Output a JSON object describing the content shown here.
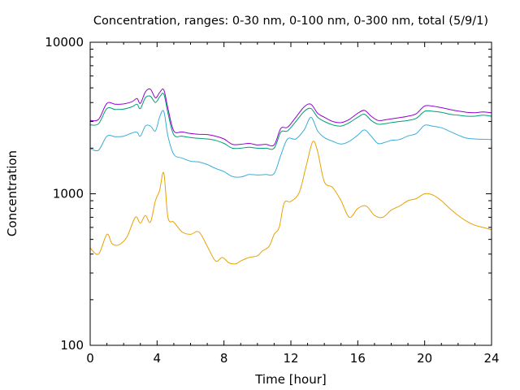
{
  "chart_data": {
    "type": "line",
    "title": "Concentration, ranges: 0-30 nm, 0-100 nm, 0-300 nm, total (5/9/1)",
    "xlabel": "Time [hour]",
    "ylabel": "Concentration",
    "xlim": [
      0,
      24
    ],
    "ylim": [
      100,
      10000
    ],
    "yscale": "log",
    "grid": false,
    "legend": "none",
    "x_ticks": [
      "0",
      "4",
      "8",
      "12",
      "16",
      "20",
      "24"
    ],
    "y_ticks": [
      "100",
      "1000",
      "10000"
    ],
    "series": [
      {
        "color": "#e8a200",
        "x": [
          0,
          0.5,
          1.0,
          1.3,
          1.7,
          2.2,
          2.7,
          3.0,
          3.3,
          3.6,
          3.9,
          4.15,
          4.4,
          4.65,
          5.0,
          5.5,
          6.0,
          6.5,
          7.0,
          7.5,
          7.9,
          8.3,
          8.7,
          9.0,
          9.5,
          10.0,
          10.3,
          10.7,
          11.0,
          11.3,
          11.6,
          12.0,
          12.5,
          12.9,
          13.3,
          13.6,
          14.0,
          14.5,
          15.0,
          15.5,
          16.0,
          16.5,
          17.0,
          17.5,
          18.0,
          18.5,
          19.0,
          19.5,
          20.0,
          20.5,
          21.0,
          21.5,
          22.0,
          22.5,
          23.0,
          23.5,
          24.0
        ],
        "y": [
          440,
          400,
          540,
          470,
          460,
          520,
          700,
          640,
          720,
          650,
          900,
          1050,
          1370,
          700,
          650,
          560,
          540,
          560,
          450,
          360,
          380,
          350,
          345,
          360,
          380,
          390,
          420,
          450,
          540,
          600,
          870,
          890,
          1020,
          1500,
          2200,
          1900,
          1200,
          1100,
          900,
          700,
          800,
          830,
          720,
          700,
          780,
          830,
          900,
          930,
          1000,
          980,
          900,
          800,
          720,
          660,
          620,
          600,
          580
        ]
      },
      {
        "color": "#3aaed8",
        "x": [
          0,
          0.5,
          1.0,
          1.5,
          2.0,
          2.5,
          2.8,
          3.0,
          3.3,
          3.6,
          3.9,
          4.15,
          4.4,
          4.65,
          5.0,
          5.5,
          6.0,
          6.5,
          7.0,
          7.5,
          8.0,
          8.5,
          9.0,
          9.5,
          10.0,
          10.5,
          11.0,
          11.4,
          11.8,
          12.3,
          12.8,
          13.2,
          13.6,
          14.0,
          14.5,
          15.0,
          15.5,
          16.0,
          16.4,
          16.8,
          17.2,
          17.6,
          18.0,
          18.5,
          19.0,
          19.5,
          20.0,
          20.5,
          21.0,
          21.5,
          22.0,
          22.5,
          23.0,
          23.5,
          24.0
        ],
        "y": [
          1990,
          1940,
          2400,
          2380,
          2400,
          2520,
          2550,
          2400,
          2800,
          2800,
          2600,
          3200,
          3500,
          2400,
          1820,
          1720,
          1640,
          1620,
          1560,
          1470,
          1400,
          1300,
          1290,
          1340,
          1330,
          1340,
          1360,
          1800,
          2300,
          2300,
          2650,
          3200,
          2600,
          2350,
          2220,
          2130,
          2220,
          2440,
          2640,
          2400,
          2150,
          2180,
          2250,
          2280,
          2410,
          2500,
          2830,
          2790,
          2730,
          2580,
          2440,
          2330,
          2300,
          2290,
          2280
        ]
      },
      {
        "color": "#009e73",
        "x": [
          0,
          0.5,
          1.0,
          1.5,
          2.0,
          2.5,
          2.8,
          3.0,
          3.3,
          3.6,
          3.9,
          4.15,
          4.4,
          4.65,
          5.0,
          5.5,
          6.0,
          6.5,
          7.0,
          7.5,
          8.0,
          8.5,
          9.0,
          9.5,
          10.0,
          10.5,
          11.0,
          11.4,
          11.8,
          12.3,
          12.8,
          13.2,
          13.6,
          14.0,
          14.5,
          15.0,
          15.5,
          16.0,
          16.4,
          16.8,
          17.2,
          17.6,
          18.0,
          18.5,
          19.0,
          19.5,
          20.0,
          20.5,
          21.0,
          21.5,
          22.0,
          22.5,
          23.0,
          23.5,
          24.0
        ],
        "y": [
          2850,
          2900,
          3650,
          3600,
          3620,
          3750,
          3900,
          3650,
          4300,
          4400,
          4000,
          4350,
          4550,
          3400,
          2450,
          2400,
          2350,
          2320,
          2300,
          2250,
          2150,
          2000,
          2000,
          2030,
          2000,
          2000,
          2000,
          2550,
          2600,
          3000,
          3500,
          3650,
          3200,
          3000,
          2850,
          2800,
          2950,
          3200,
          3350,
          3050,
          2880,
          2900,
          2950,
          3000,
          3050,
          3150,
          3500,
          3500,
          3450,
          3350,
          3300,
          3250,
          3250,
          3300,
          3250
        ]
      },
      {
        "color": "#9400d3",
        "x": [
          0,
          0.5,
          1.0,
          1.5,
          2.0,
          2.5,
          2.8,
          3.0,
          3.3,
          3.6,
          3.9,
          4.15,
          4.4,
          4.65,
          5.0,
          5.5,
          6.0,
          6.5,
          7.0,
          7.5,
          8.0,
          8.5,
          9.0,
          9.5,
          10.0,
          10.5,
          11.0,
          11.4,
          11.8,
          12.3,
          12.8,
          13.2,
          13.6,
          14.0,
          14.5,
          15.0,
          15.5,
          16.0,
          16.4,
          16.8,
          17.2,
          17.6,
          18.0,
          18.5,
          19.0,
          19.5,
          20.0,
          20.5,
          21.0,
          21.5,
          22.0,
          22.5,
          23.0,
          23.5,
          24.0
        ],
        "y": [
          3050,
          3100,
          3950,
          3900,
          3920,
          4050,
          4250,
          3950,
          4700,
          4900,
          4300,
          4650,
          4850,
          3650,
          2600,
          2560,
          2500,
          2470,
          2460,
          2400,
          2300,
          2120,
          2120,
          2150,
          2100,
          2120,
          2100,
          2700,
          2750,
          3200,
          3750,
          3900,
          3400,
          3200,
          3000,
          2950,
          3100,
          3400,
          3550,
          3250,
          3050,
          3070,
          3120,
          3180,
          3250,
          3380,
          3800,
          3780,
          3700,
          3600,
          3520,
          3450,
          3430,
          3470,
          3420
        ]
      }
    ]
  }
}
